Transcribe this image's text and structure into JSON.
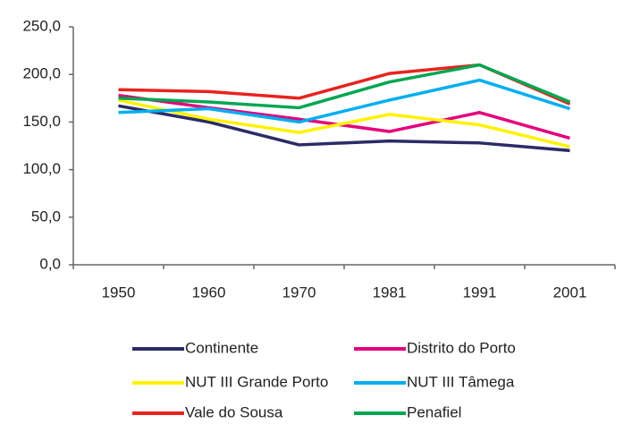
{
  "chart_data": {
    "type": "line",
    "categories": [
      "1950",
      "1960",
      "1970",
      "1981",
      "1991",
      "2001"
    ],
    "series": [
      {
        "name": "Continente",
        "color": "#2b2b66",
        "values": [
          167,
          150,
          126,
          130,
          128,
          120
        ]
      },
      {
        "name": "Distrito do Porto",
        "color": "#e4007c",
        "values": [
          178,
          165,
          153,
          140,
          160,
          133
        ]
      },
      {
        "name": "NUT III Grande Porto",
        "color": "#fff200",
        "values": [
          173,
          153,
          139,
          158,
          147,
          124
        ]
      },
      {
        "name": "NUT III Tâmega",
        "color": "#00aeef",
        "values": [
          160,
          164,
          150,
          173,
          194,
          164
        ]
      },
      {
        "name": "Vale do Sousa",
        "color": "#e8231e",
        "values": [
          184,
          182,
          175,
          201,
          210,
          169
        ]
      },
      {
        "name": "Penafiel",
        "color": "#00a651",
        "values": [
          175,
          171,
          165,
          192,
          210,
          171
        ]
      }
    ],
    "ylim": [
      0,
      250
    ],
    "yticks": [
      {
        "value": 0,
        "label": "0,0"
      },
      {
        "value": 50,
        "label": "50,0"
      },
      {
        "value": 100,
        "label": "100,0"
      },
      {
        "value": 150,
        "label": "150,0"
      },
      {
        "value": 200,
        "label": "200,0"
      },
      {
        "value": 250,
        "label": "250,0"
      }
    ]
  }
}
